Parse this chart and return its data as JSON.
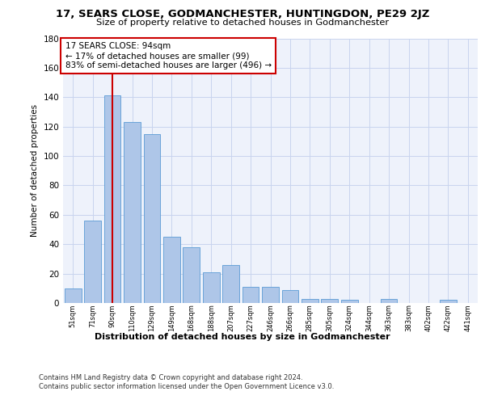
{
  "title": "17, SEARS CLOSE, GODMANCHESTER, HUNTINGDON, PE29 2JZ",
  "subtitle": "Size of property relative to detached houses in Godmanchester",
  "xlabel": "Distribution of detached houses by size in Godmanchester",
  "ylabel": "Number of detached properties",
  "bar_color": "#aec6e8",
  "bar_edge_color": "#5b9bd5",
  "background_color": "#eef2fb",
  "vline_color": "#cc0000",
  "vline_x": 2,
  "annotation_text": "17 SEARS CLOSE: 94sqm\n← 17% of detached houses are smaller (99)\n83% of semi-detached houses are larger (496) →",
  "annotation_box_color": "#ffffff",
  "annotation_box_edge": "#cc0000",
  "categories": [
    "51sqm",
    "71sqm",
    "90sqm",
    "110sqm",
    "129sqm",
    "149sqm",
    "168sqm",
    "188sqm",
    "207sqm",
    "227sqm",
    "246sqm",
    "266sqm",
    "285sqm",
    "305sqm",
    "324sqm",
    "344sqm",
    "363sqm",
    "383sqm",
    "402sqm",
    "422sqm",
    "441sqm"
  ],
  "values": [
    10,
    56,
    141,
    123,
    115,
    45,
    38,
    21,
    26,
    11,
    11,
    9,
    3,
    3,
    2,
    0,
    3,
    0,
    0,
    2,
    0
  ],
  "ylim": [
    0,
    180
  ],
  "yticks": [
    0,
    20,
    40,
    60,
    80,
    100,
    120,
    140,
    160,
    180
  ],
  "footer_line1": "Contains HM Land Registry data © Crown copyright and database right 2024.",
  "footer_line2": "Contains public sector information licensed under the Open Government Licence v3.0."
}
